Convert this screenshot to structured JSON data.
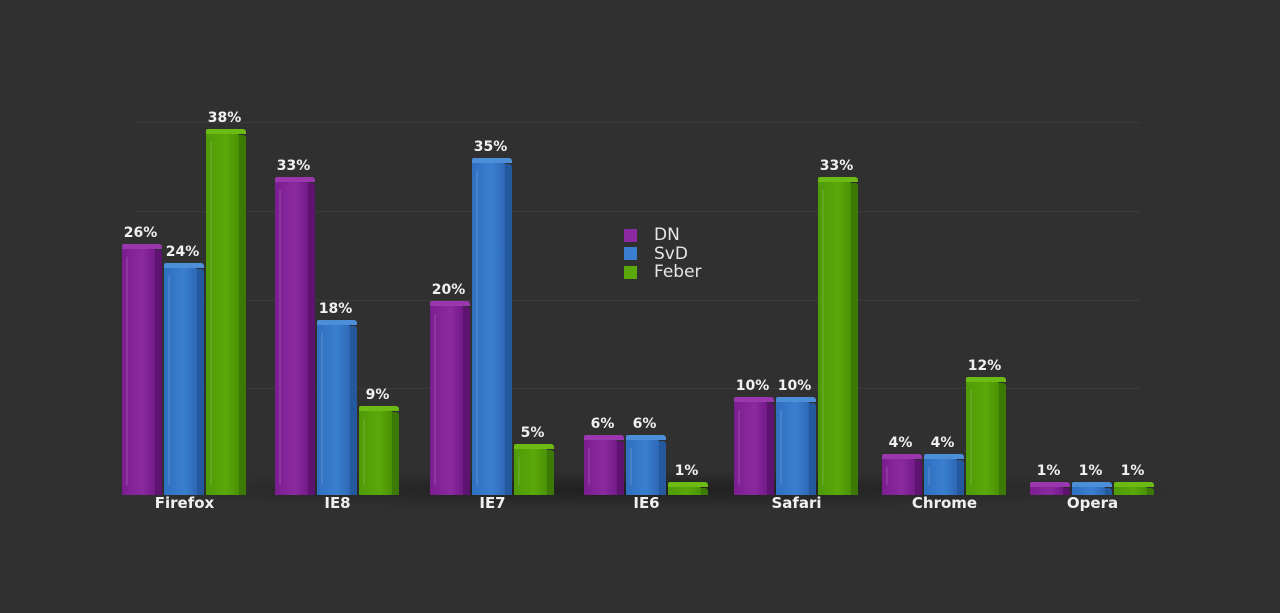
{
  "chart_data": {
    "type": "bar",
    "title": "",
    "xlabel": "",
    "ylabel": "",
    "ylim": [
      0,
      40
    ],
    "grid": true,
    "legend_position": "center-top",
    "categories": [
      "Firefox",
      "IE8",
      "IE7",
      "IE6",
      "Safari",
      "Chrome",
      "Opera"
    ],
    "series": [
      {
        "name": "DN",
        "color": "#8b2aa0",
        "values": [
          26,
          33,
          20,
          6,
          10,
          4,
          1
        ]
      },
      {
        "name": "SvD",
        "color": "#3a7fcf",
        "values": [
          24,
          18,
          35,
          6,
          10,
          4,
          1
        ]
      },
      {
        "name": "Feber",
        "color": "#5aa80a",
        "values": [
          38,
          9,
          5,
          1,
          33,
          12,
          1
        ]
      }
    ],
    "value_labels": [
      [
        "26%",
        "33%",
        "20%",
        "6%",
        "10%",
        "4%",
        "1%"
      ],
      [
        "24%",
        "18%",
        "35%",
        "6%",
        "10%",
        "4%",
        "1%"
      ],
      [
        "38%",
        "9%",
        "5%",
        "1%",
        "33%",
        "12%",
        "1%"
      ]
    ]
  },
  "legend": {
    "items": [
      {
        "label": "DN",
        "color": "#8b2aa0"
      },
      {
        "label": "SvD",
        "color": "#3a7fcf"
      },
      {
        "label": "Feber",
        "color": "#5aa80a"
      }
    ]
  }
}
